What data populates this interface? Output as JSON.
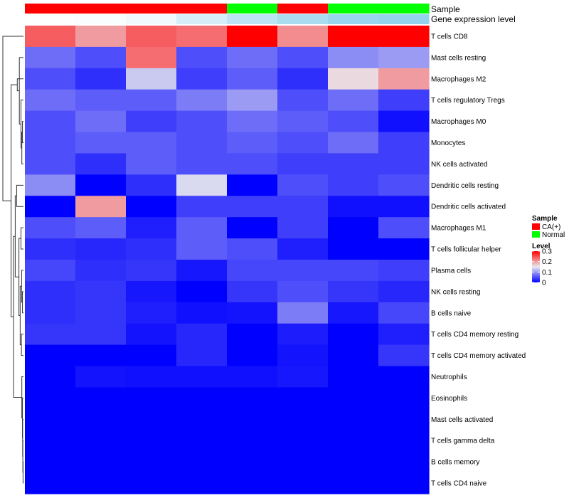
{
  "chart_data": {
    "type": "heatmap",
    "annotation_rows": [
      "Sample",
      "Gene expression level"
    ],
    "samples": [
      "CA(+)",
      "CA(+)",
      "CA(+)",
      "CA(+)",
      "Normal",
      "CA(+)",
      "Normal",
      "Normal"
    ],
    "expression_level": [
      0.02,
      0.05,
      0.12,
      0.35,
      0.55,
      0.7,
      0.85,
      0.9
    ],
    "rows": [
      "T cells CD8",
      "Mast cells resting",
      "Macrophages M2",
      "T cells regulatory  Tregs",
      "Macrophages M0",
      "Monocytes",
      "NK cells activated",
      "Dendritic cells resting",
      "Dendritic cells activated",
      "Macrophages M1",
      "T cells follicular helper",
      "Plasma cells",
      "NK cells resting",
      "B cells naive",
      "T cells CD4 memory resting",
      "T cells CD4 memory activated",
      "Neutrophils",
      "Eosinophils",
      "Mast cells activated",
      "T cells gamma delta",
      "B cells memory",
      "T cells CD4 naive"
    ],
    "values": [
      [
        0.24,
        0.2,
        0.24,
        0.23,
        0.3,
        0.21,
        0.3,
        0.3
      ],
      [
        0.07,
        0.05,
        0.23,
        0.05,
        0.07,
        0.05,
        0.09,
        0.1
      ],
      [
        0.05,
        0.03,
        0.13,
        0.04,
        0.06,
        0.03,
        0.16,
        0.2
      ],
      [
        0.07,
        0.06,
        0.06,
        0.08,
        0.1,
        0.05,
        0.07,
        0.04
      ],
      [
        0.05,
        0.07,
        0.04,
        0.05,
        0.07,
        0.06,
        0.05,
        0.01
      ],
      [
        0.05,
        0.06,
        0.06,
        0.05,
        0.06,
        0.05,
        0.07,
        0.04
      ],
      [
        0.05,
        0.03,
        0.06,
        0.05,
        0.05,
        0.04,
        0.04,
        0.04
      ],
      [
        0.09,
        0.0,
        0.03,
        0.14,
        0.0,
        0.05,
        0.04,
        0.05
      ],
      [
        0.0,
        0.2,
        0.0,
        0.04,
        0.04,
        0.04,
        0.01,
        0.01
      ],
      [
        0.05,
        0.06,
        0.02,
        0.06,
        0.0,
        0.04,
        0.0,
        0.05
      ],
      [
        0.03,
        0.025,
        0.03,
        0.06,
        0.05,
        0.02,
        0.0,
        0.0
      ],
      [
        0.045,
        0.03,
        0.035,
        0.015,
        0.045,
        0.045,
        0.045,
        0.04
      ],
      [
        0.03,
        0.035,
        0.015,
        0.0,
        0.035,
        0.05,
        0.035,
        0.025
      ],
      [
        0.03,
        0.035,
        0.02,
        0.01,
        0.012,
        0.08,
        0.015,
        0.045
      ],
      [
        0.035,
        0.035,
        0.012,
        0.025,
        0.0,
        0.018,
        0.0,
        0.02
      ],
      [
        0.0,
        0.0,
        0.0,
        0.025,
        0.0,
        0.012,
        0.0,
        0.035
      ],
      [
        0.0,
        0.012,
        0.01,
        0.01,
        0.01,
        0.015,
        0.0,
        0.0
      ],
      [
        0.0,
        0.0,
        0.0,
        0.0,
        0.0,
        0.0,
        0.0,
        0.0
      ],
      [
        0.0,
        0.0,
        0.0,
        0.0,
        0.0,
        0.0,
        0.0,
        0.0
      ],
      [
        0.0,
        0.0,
        0.0,
        0.0,
        0.0,
        0.0,
        0.0,
        0.0
      ],
      [
        0.0,
        0.0,
        0.0,
        0.0,
        0.0,
        0.0,
        0.0,
        0.0
      ],
      [
        0.0,
        0.0,
        0.0,
        0.0,
        0.0,
        0.0,
        0.0,
        0.0
      ]
    ],
    "color_scale": {
      "low": "#0000ff",
      "mid": "#e9e9ef",
      "high": "#ff0000",
      "min": 0,
      "mid_value": 0.15,
      "max": 0.3
    },
    "expression_scale": {
      "low": "#ffffff",
      "high": "#87ceeb"
    },
    "legend": {
      "sample_title": "Sample",
      "sample_entries": [
        {
          "label": "CA(+)",
          "color": "#ff0000"
        },
        {
          "label": "Normal",
          "color": "#00ff00"
        }
      ],
      "level_title": "Level",
      "level_ticks": [
        "0.3",
        "0.2",
        "0.1",
        "0"
      ],
      "level_tick_values": [
        0.3,
        0.2,
        0.1,
        0
      ]
    },
    "dendrogram": "row"
  }
}
